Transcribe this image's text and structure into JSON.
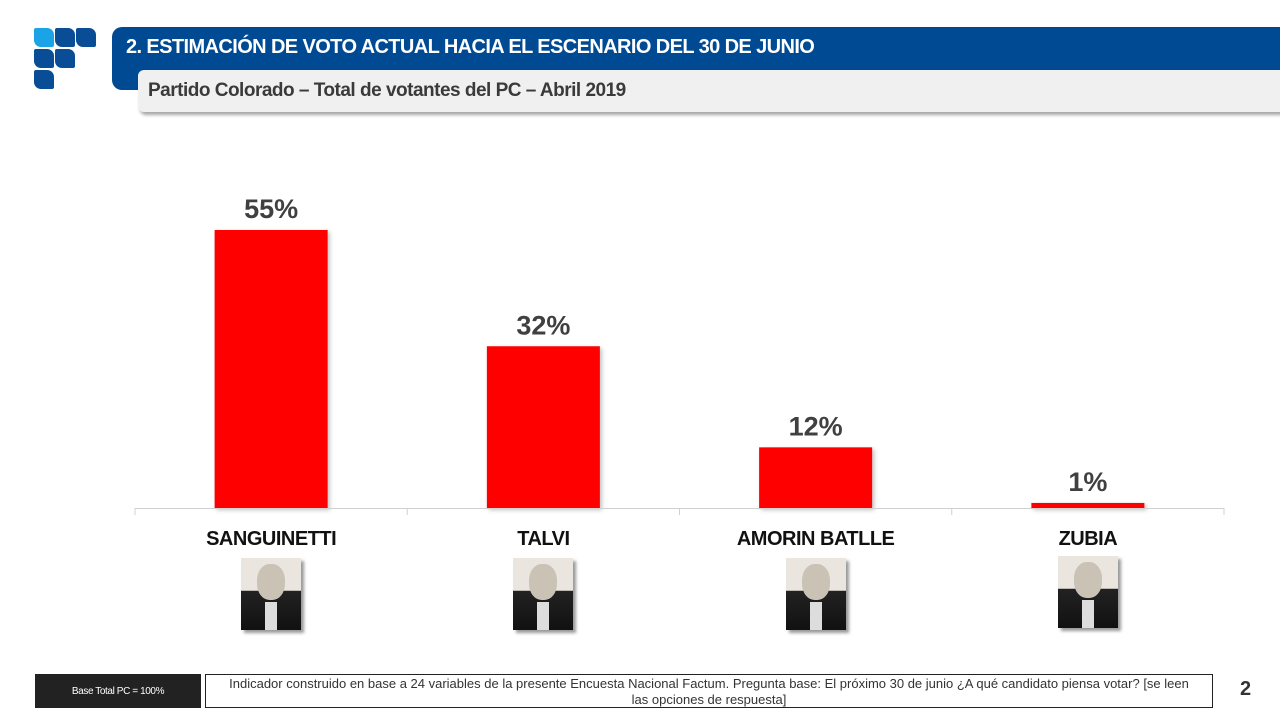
{
  "header": {
    "title": "2. ESTIMACIÓN DE VOTO ACTUAL HACIA EL ESCENARIO DEL 30 DE JUNIO",
    "subtitle": "Partido Colorado – Total de votantes del PC – Abril 2019"
  },
  "colors": {
    "bar": "#ff0000",
    "header": "#004a93",
    "logo_accent": "#1aa3e6"
  },
  "chart_data": {
    "type": "bar",
    "title": "Partido Colorado – Total de votantes del PC – Abril 2019",
    "categories": [
      "SANGUINETTI",
      "TALVI",
      "AMORIN BATLLE",
      "ZUBIA"
    ],
    "values": [
      55,
      32,
      12,
      1
    ],
    "data_labels": [
      "55%",
      "32%",
      "12%",
      "1%"
    ],
    "xlabel": "",
    "ylabel": "",
    "ylim": [
      0,
      60
    ],
    "grid": false,
    "legend": "none"
  },
  "candidates": [
    {
      "name": "SANGUINETTI",
      "photo": "portrait-photo"
    },
    {
      "name": "TALVI",
      "photo": "portrait-photo"
    },
    {
      "name": "AMORIN BATLLE",
      "photo": "portrait-photo"
    },
    {
      "name": "ZUBIA",
      "photo": "portrait-photo"
    }
  ],
  "footer": {
    "base": "Base Total PC = 100%",
    "note": "Indicador construido en base a 24 variables de la presente Encuesta Nacional Factum. Pregunta base: El próximo 30 de junio  ¿A qué candidato piensa votar? [se leen las opciones de respuesta]",
    "page_number": "2"
  }
}
